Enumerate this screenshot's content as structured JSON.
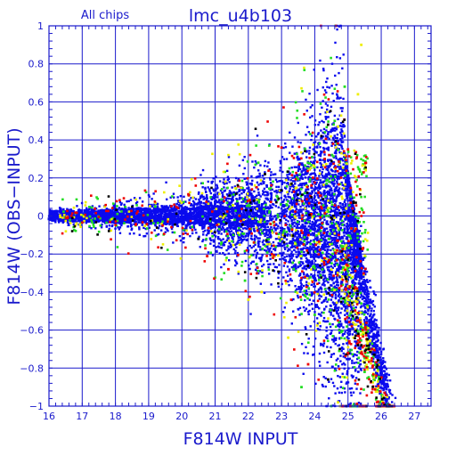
{
  "chart_data": {
    "type": "scatter",
    "title": "lmc_u4b103",
    "subtitle": "All chips",
    "xlabel": "F814W INPUT",
    "ylabel": "F814W (OBS−INPUT)",
    "xlim": [
      16,
      27.5
    ],
    "ylim": [
      -1,
      1
    ],
    "x_ticks": [
      "16",
      "17",
      "18",
      "19",
      "20",
      "21",
      "22",
      "23",
      "24",
      "25",
      "26",
      "27"
    ],
    "y_ticks": [
      "−1",
      "−0.8",
      "−0.6",
      "−0.4",
      "−0.2",
      "0",
      "0.2",
      "0.4",
      "0.6",
      "0.8",
      "1"
    ],
    "grid": true,
    "series_colors": {
      "main": "#0a0aee",
      "green": "#22dd22",
      "yellow": "#eeee00",
      "red": "#ee0000",
      "black": "#000000"
    },
    "points": [
      {
        "x": 24.4,
        "y": 0.48
      },
      {
        "x": 24.6,
        "y": 0.5
      },
      {
        "x": 24.7,
        "y": 0.47
      },
      {
        "x": 25.0,
        "y": 0.35
      },
      {
        "x": 24.2,
        "y": 0.42
      },
      {
        "x": 24.9,
        "y": 0.68
      },
      {
        "x": 25.3,
        "y": 0.64
      },
      {
        "x": 23.0,
        "y": 0.36
      },
      {
        "x": 22.5,
        "y": 0.22
      },
      {
        "x": 22.3,
        "y": 0.28
      },
      {
        "x": 25.4,
        "y": 0.9
      },
      {
        "x": 23.9,
        "y": 0.16
      },
      {
        "x": 23.3,
        "y": 0.17
      },
      {
        "x": 21.9,
        "y": -0.34
      },
      {
        "x": 22.4,
        "y": -0.4
      },
      {
        "x": 25.0,
        "y": -0.72
      },
      {
        "x": 25.4,
        "y": -0.68
      },
      {
        "x": 24.0,
        "y": -0.52
      },
      {
        "x": 23.2,
        "y": -0.64
      },
      {
        "x": 23.8,
        "y": -0.78
      },
      {
        "x": 24.4,
        "y": -0.86
      },
      {
        "x": 25.5,
        "y": -0.82
      },
      {
        "x": 22.0,
        "y": -0.44
      },
      {
        "x": 21.4,
        "y": -0.28
      },
      {
        "x": 20.5,
        "y": -0.12
      },
      {
        "x": 19.2,
        "y": 0.05
      },
      {
        "x": 24.7,
        "y": -0.98
      },
      {
        "x": 26.1,
        "y": -0.93
      },
      {
        "x": 25.9,
        "y": -0.76
      },
      {
        "x": 23.6,
        "y": -0.9
      },
      {
        "x": 24.9,
        "y": 0.32
      },
      {
        "x": 24.3,
        "y": 0.3
      }
    ]
  }
}
